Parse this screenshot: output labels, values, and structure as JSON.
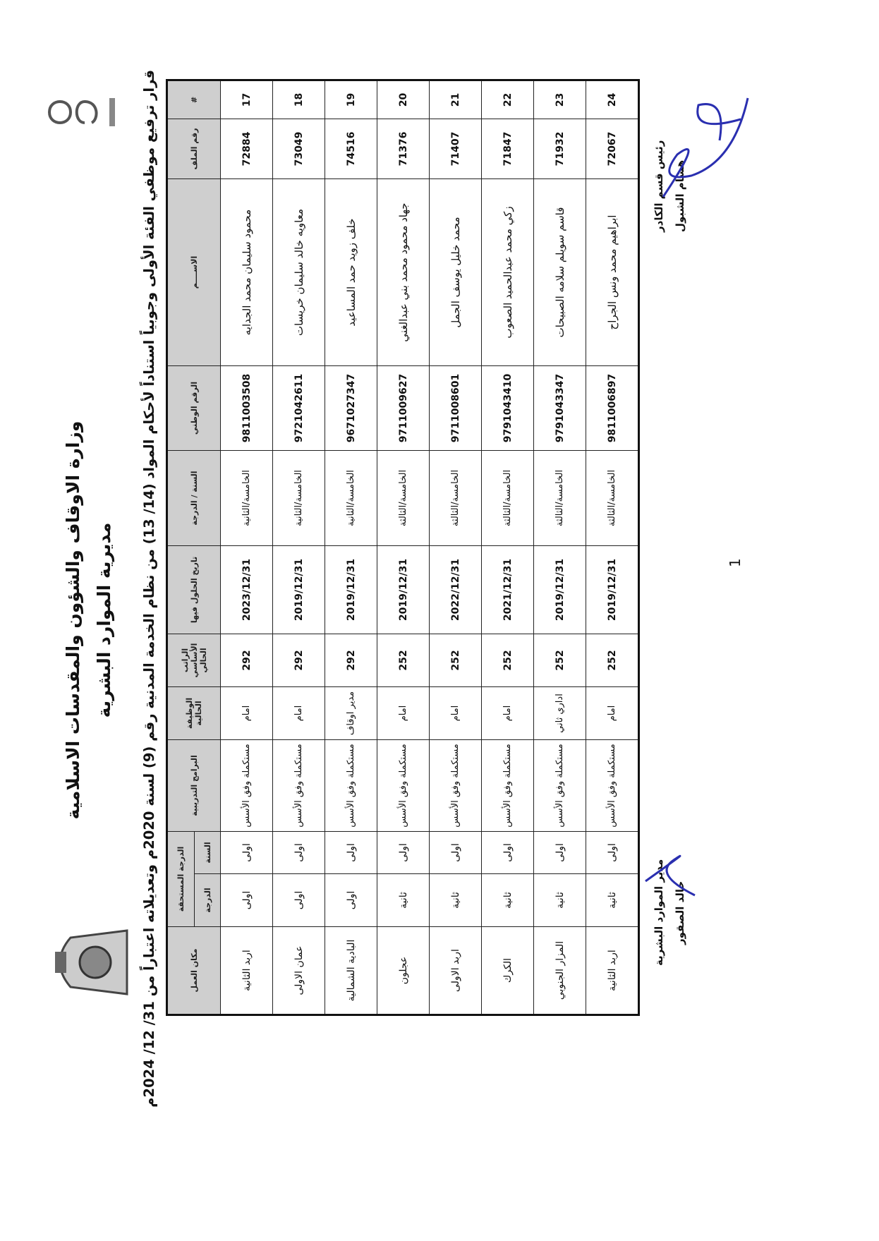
{
  "header": {
    "ministry": "وزارة الاوقاف والشؤون والمقدسات الاسلامية",
    "directorate": "مديرية الموارد البشرية",
    "title": "قرار ترفيع موظفي الفئة الأولى وجوبياً استناداً لأحكام المواد (14/ 13) من نظام الخدمة المدنية رقم (9) لسنة 2020م وتعديلاته اعتباراً من 31/ 12/ 2024م"
  },
  "table": {
    "columns": {
      "index": "#",
      "file_no": "رقم الملف",
      "name": "الاســــم",
      "national_id": "الرقم الوطني",
      "year_grade": "السنة / الدرجة",
      "date": "تاريخ الحلول فيها",
      "salary": "الراتب الأساسي الحالي",
      "job": "الوظيفة الحالية",
      "training": "البرامج التدريبية",
      "due_grade": "الدرجة المستحقة",
      "due_year": "السنة",
      "due_degree": "الدرجة",
      "workplace": "مكان العمل"
    },
    "rows": [
      {
        "index": "17",
        "file_no": "72884",
        "name": "محمود سليمان محمد الجدايه",
        "national_id": "9811003508",
        "year_grade": "الخامسة/الثانية",
        "date": "2023/12/31",
        "salary": "292",
        "job": "امام",
        "training": "مستكملة وفق الأسس",
        "due_year": "اولى",
        "due_degree": "اولى",
        "workplace": "اربد الثانية"
      },
      {
        "index": "18",
        "file_no": "73049",
        "name": "معاويه خالد سليمان خريسات",
        "national_id": "9721042611",
        "year_grade": "الخامسة/الثانية",
        "date": "2019/12/31",
        "salary": "292",
        "job": "امام",
        "training": "مستكملة وفق الأسس",
        "due_year": "اولى",
        "due_degree": "اولى",
        "workplace": "عمان الاولى"
      },
      {
        "index": "19",
        "file_no": "74516",
        "name": "خلف زويد حمد المساعيد",
        "national_id": "9671027347",
        "year_grade": "الخامسة/الثانية",
        "date": "2019/12/31",
        "salary": "292",
        "job": "مدير اوقاف",
        "training": "مستكملة وفق الأسس",
        "due_year": "اولى",
        "due_degree": "اولى",
        "workplace": "البادية الشمالية"
      },
      {
        "index": "20",
        "file_no": "71376",
        "name": "جهاد محمود محمد بني عبدالغني",
        "national_id": "9711009627",
        "year_grade": "الخامسة/الثالثة",
        "date": "2019/12/31",
        "salary": "252",
        "job": "امام",
        "training": "مستكملة وفق الأسس",
        "due_year": "اولى",
        "due_degree": "ثانية",
        "workplace": "عجلون"
      },
      {
        "index": "21",
        "file_no": "71407",
        "name": "محمد خليل يوسف الجمل",
        "national_id": "9711008601",
        "year_grade": "الخامسة/الثالثة",
        "date": "2022/12/31",
        "salary": "252",
        "job": "امام",
        "training": "مستكملة وفق الأسس",
        "due_year": "اولى",
        "due_degree": "ثانية",
        "workplace": "اربد الاولى"
      },
      {
        "index": "22",
        "file_no": "71847",
        "name": "زكي محمد عبدالحميد الصعوب",
        "national_id": "9791043410",
        "year_grade": "الخامسة/الثالثة",
        "date": "2021/12/31",
        "salary": "252",
        "job": "امام",
        "training": "مستكملة وفق الأسس",
        "due_year": "اولى",
        "due_degree": "ثانية",
        "workplace": "الكرك"
      },
      {
        "index": "23",
        "file_no": "71932",
        "name": "قاسم سويلم سلامه الصبيحات",
        "national_id": "9791043347",
        "year_grade": "الخامسة/الثالثة",
        "date": "2019/12/31",
        "salary": "252",
        "job": "اداري ثاني",
        "training": "مستكملة وفق الأسس",
        "due_year": "اولى",
        "due_degree": "ثانية",
        "workplace": "المزار الجنوبي"
      },
      {
        "index": "24",
        "file_no": "72067",
        "name": "ابراهيم محمد ونس الجراح",
        "national_id": "9811006897",
        "year_grade": "الخامسة/الثالثة",
        "date": "2019/12/31",
        "salary": "252",
        "job": "امام",
        "training": "مستكملة وفق الأسس",
        "due_year": "اولى",
        "due_degree": "ثانية",
        "workplace": "اربد الثانية"
      }
    ]
  },
  "footer": {
    "cadre_head_title": "رئيس قسم الكادر",
    "cadre_head_name": "هشام الشبول",
    "hr_director_title": "مدير الموارد البشرية",
    "hr_director_name": "خالد الصقور",
    "page_number": "1",
    "signature_color": "#2a2fb0"
  }
}
